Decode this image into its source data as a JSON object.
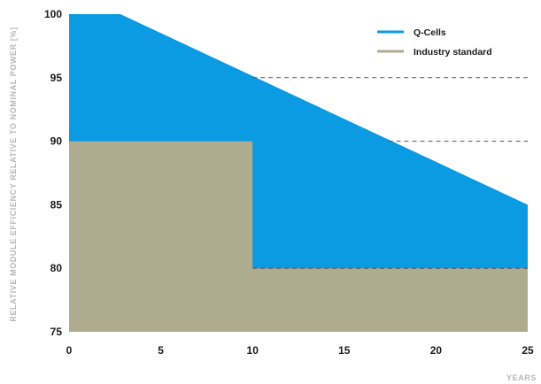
{
  "chart_data": {
    "type": "area",
    "title": "",
    "xlabel": "YEARS",
    "ylabel": "RELATIVE MODULE EFFICIENCY RELATIVE TO NOMINAL POWER [%]",
    "xlim": [
      0,
      25
    ],
    "ylim": [
      75,
      100
    ],
    "x_ticks": [
      0,
      5,
      10,
      15,
      20,
      25
    ],
    "y_ticks": [
      75,
      80,
      85,
      90,
      95,
      100
    ],
    "grid": false,
    "legend_position": "top-right",
    "series": [
      {
        "name": "Q-Cells",
        "color": "#0a9be3",
        "x": [
          0,
          2.8,
          25
        ],
        "y": [
          100,
          100,
          85
        ]
      },
      {
        "name": "Industry standard",
        "color": "#aeab8e",
        "x": [
          0,
          10,
          10,
          25
        ],
        "y": [
          90,
          90,
          80,
          80
        ]
      }
    ],
    "reference_lines": [
      {
        "y": 95,
        "x_from": 10,
        "x_to": 25,
        "style": "dashed",
        "color": "#555555"
      },
      {
        "y": 90,
        "x_from": 17.4,
        "x_to": 25,
        "style": "dashed",
        "color": "#555555"
      },
      {
        "y": 80,
        "x_from": 10,
        "x_to": 25,
        "style": "dashed",
        "color": "#555555"
      }
    ]
  }
}
